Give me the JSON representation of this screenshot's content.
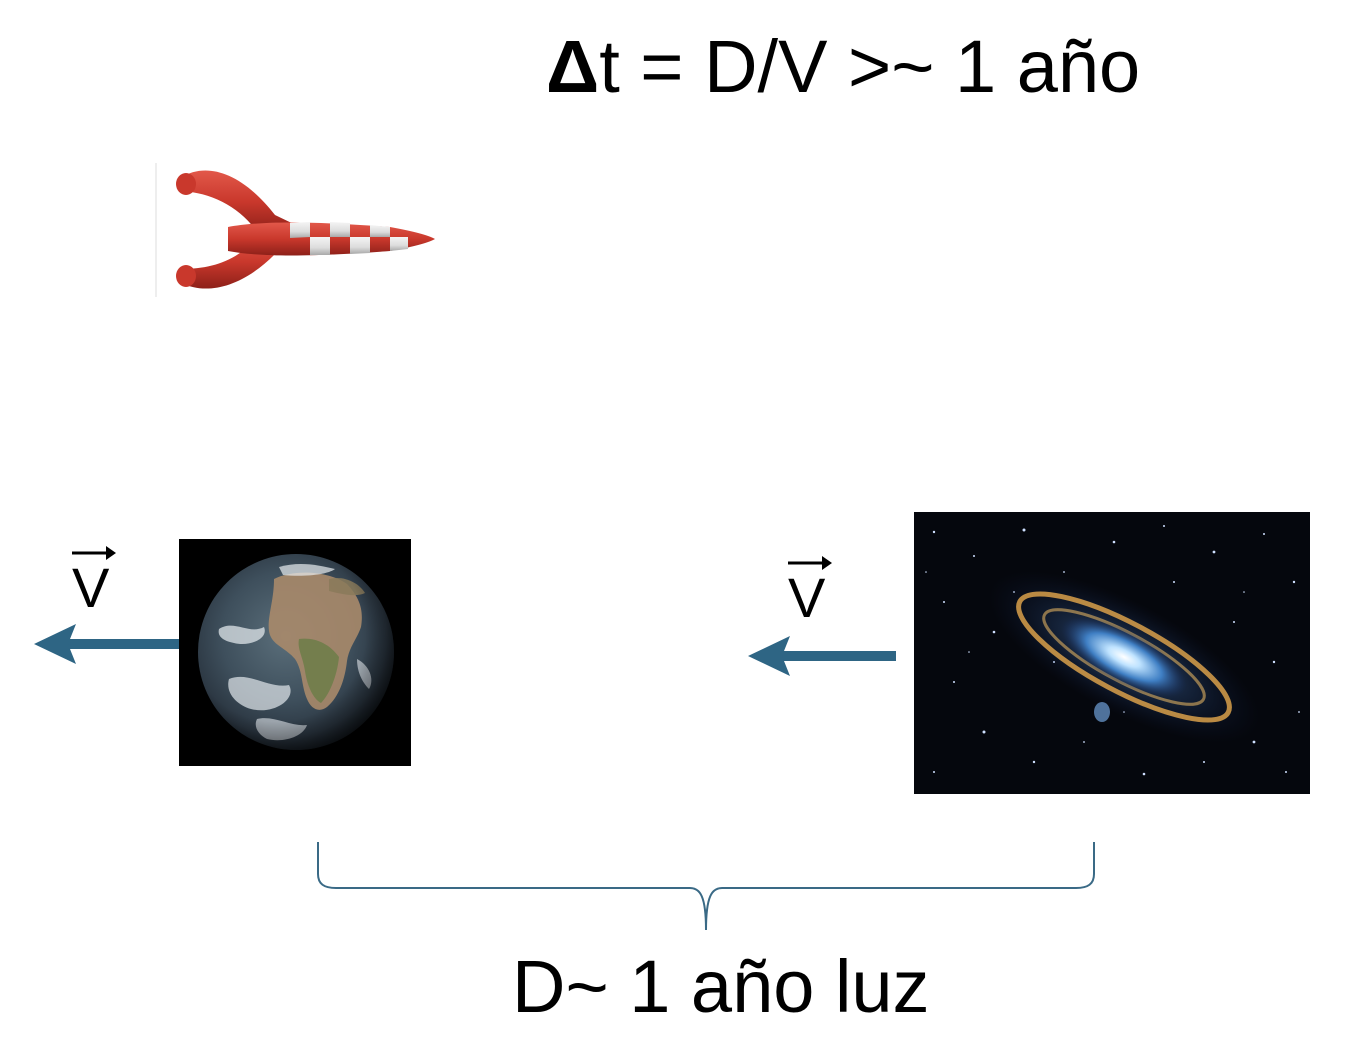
{
  "formula": {
    "delta": "Δ",
    "rest": "t = D/V >~ 1 año"
  },
  "velocity_left": {
    "letter": "V"
  },
  "velocity_right": {
    "letter": "V"
  },
  "distance": {
    "label": "D~ 1 año luz"
  },
  "colors": {
    "arrow": "#2e6584",
    "brace": "#3a6a86",
    "rocket_red": "#c9382c",
    "rocket_white": "#e6e6e6"
  },
  "icons": {
    "rocket": "rocket-icon",
    "earth": "earth-globe-icon",
    "galaxy": "spiral-galaxy-icon"
  }
}
